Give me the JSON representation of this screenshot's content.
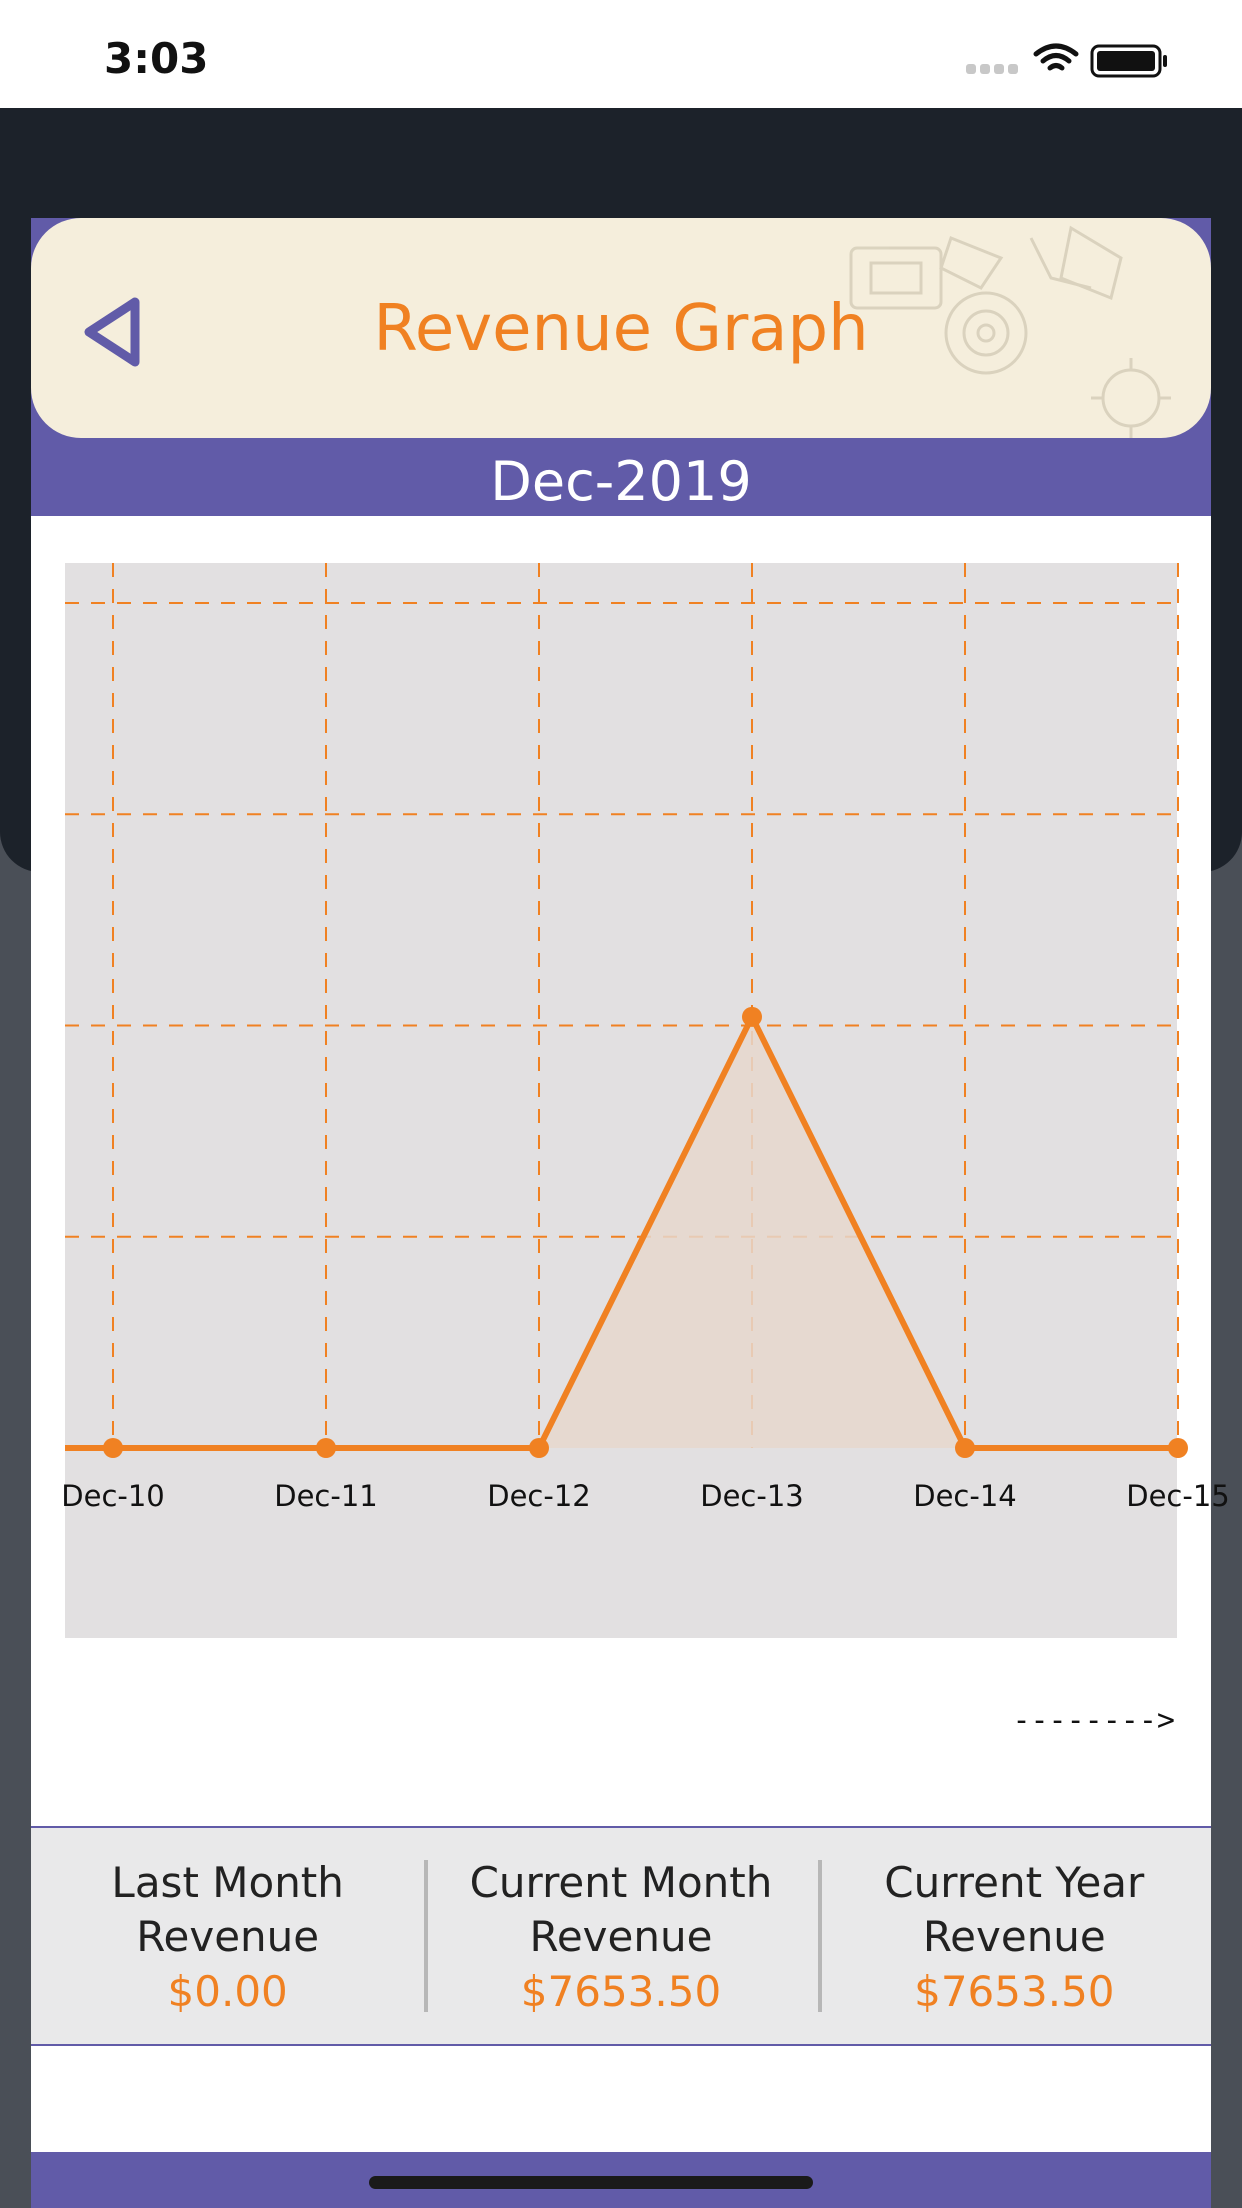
{
  "status_bar": {
    "time": "3:03"
  },
  "header": {
    "title": "Revenue Graph",
    "month": "Dec-2019"
  },
  "colors": {
    "accent": "#f08122",
    "purple": "#615ba8",
    "chart_bg": "#e2e0e1",
    "header_bg": "#f5eedc"
  },
  "chart_data": {
    "type": "area",
    "categories": [
      "Dec-10",
      "Dec-11",
      "Dec-12",
      "Dec-13",
      "Dec-14",
      "Dec-15"
    ],
    "series": [
      {
        "values": [
          0,
          0,
          0,
          7653.5,
          0,
          0
        ]
      }
    ],
    "ylim": [
      0,
      15000
    ],
    "grid": true
  },
  "scroll_hint": "-------->",
  "summary": [
    {
      "label_line1": "Last Month",
      "label_line2": "Revenue",
      "value": "$0.00"
    },
    {
      "label_line1": "Current Month",
      "label_line2": "Revenue",
      "value": "$7653.50"
    },
    {
      "label_line1": "Current Year",
      "label_line2": "Revenue",
      "value": "$7653.50"
    }
  ]
}
